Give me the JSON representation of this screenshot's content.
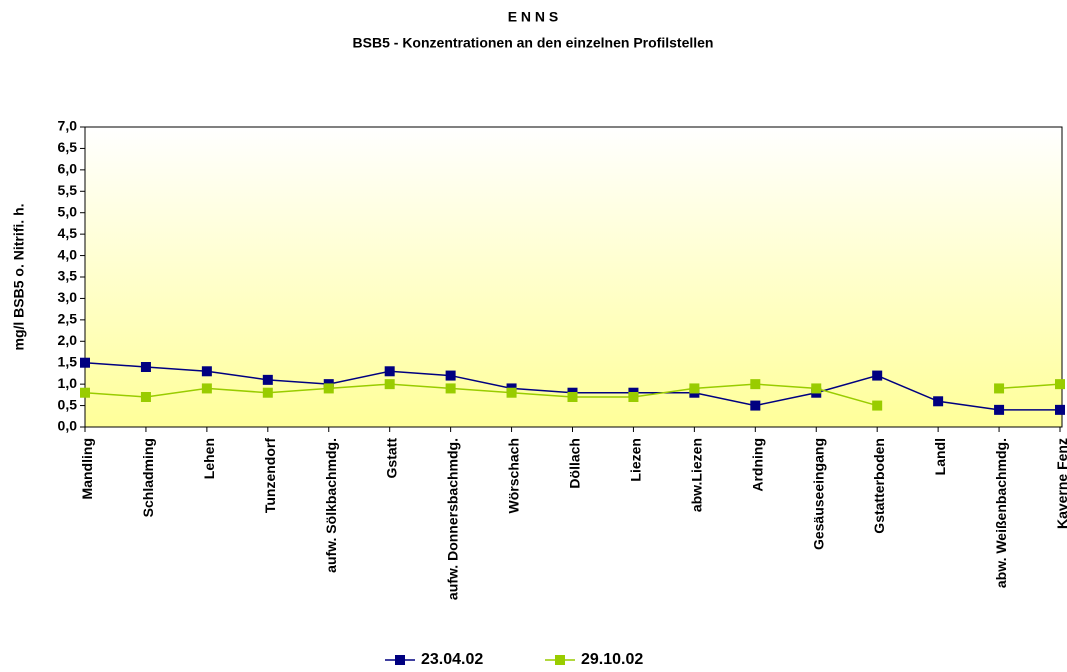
{
  "chart_data": {
    "type": "line",
    "title": "E N N S",
    "subtitle": "BSB5 - Konzentrationen an den einzelnen Profilstellen",
    "y_label": "mg/l BSB5 o. Nitrifi. h.",
    "categories": [
      "Mandling",
      "Schladming",
      "Lehen",
      "Tunzendorf",
      "aufw. Sölkbachmdg.",
      "Gstatt",
      "aufw. Donnersbachmdg.",
      "Wörschach",
      "Döllach",
      "Liezen",
      "abw.Liezen",
      "Ardning",
      "Gesäuseeingang",
      "Gstatterboden",
      "Landl",
      "abw. Weißenbachmdg.",
      "Kaverne Fenz"
    ],
    "series": [
      {
        "name": "23.04.02",
        "color": "#000080",
        "values": [
          1.5,
          1.4,
          1.3,
          1.1,
          1.0,
          1.3,
          1.2,
          0.9,
          0.8,
          0.8,
          0.8,
          0.5,
          0.8,
          1.2,
          0.6,
          0.4,
          0.4
        ]
      },
      {
        "name": "29.10.02",
        "color": "#99cc00",
        "values": [
          0.8,
          0.7,
          0.9,
          0.8,
          0.9,
          1.0,
          0.9,
          0.8,
          0.7,
          0.7,
          0.9,
          1.0,
          0.9,
          0.5,
          null,
          0.9,
          1.0
        ]
      }
    ],
    "ylim": [
      0,
      7
    ],
    "yticks": [
      {
        "value": 0,
        "label": "0,0"
      },
      {
        "value": 0.5,
        "label": "0,5"
      },
      {
        "value": 1,
        "label": "1,0"
      },
      {
        "value": 1.5,
        "label": "1,5"
      },
      {
        "value": 2,
        "label": "2,0"
      },
      {
        "value": 2.5,
        "label": "2,5"
      },
      {
        "value": 3,
        "label": "3,0"
      },
      {
        "value": 3.5,
        "label": "3,5"
      },
      {
        "value": 4,
        "label": "4,0"
      },
      {
        "value": 4.5,
        "label": "4,5"
      },
      {
        "value": 5,
        "label": "5,0"
      },
      {
        "value": 5.5,
        "label": "5,5"
      },
      {
        "value": 6,
        "label": "6,0"
      },
      {
        "value": 6.5,
        "label": "6,5"
      },
      {
        "value": 7,
        "label": "7,0"
      }
    ],
    "legend": "bottom",
    "grid": false
  }
}
